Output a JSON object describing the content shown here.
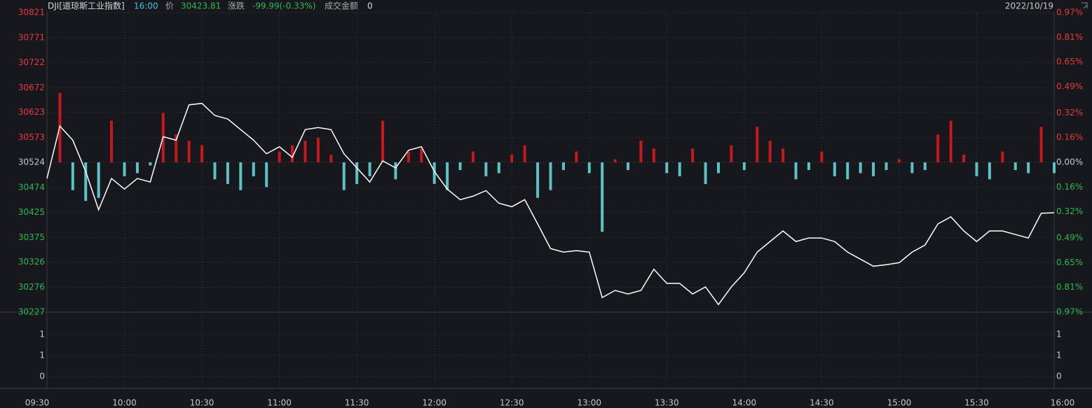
{
  "header": {
    "code": "DJI[道琼斯工业指数]",
    "time": "16:00",
    "price_label": "价",
    "price": "30423.81",
    "change_label": "涨跌",
    "change": "-99.99(-0.33%)",
    "amount_label": "成交金额",
    "amount": "0",
    "date": "2022/10/19"
  },
  "chart_data": {
    "type": "line",
    "x": [
      "09:30",
      "09:35",
      "09:40",
      "09:45",
      "09:50",
      "09:55",
      "10:00",
      "10:05",
      "10:10",
      "10:15",
      "10:20",
      "10:25",
      "10:30",
      "10:35",
      "10:40",
      "10:45",
      "10:50",
      "10:55",
      "11:00",
      "11:05",
      "11:10",
      "11:15",
      "11:20",
      "11:25",
      "11:30",
      "11:35",
      "11:40",
      "11:45",
      "11:50",
      "11:55",
      "12:00",
      "12:05",
      "12:10",
      "12:15",
      "12:20",
      "12:25",
      "12:30",
      "12:35",
      "12:40",
      "12:45",
      "12:50",
      "12:55",
      "13:00",
      "13:05",
      "13:10",
      "13:15",
      "13:20",
      "13:25",
      "13:30",
      "13:35",
      "13:40",
      "13:45",
      "13:50",
      "13:55",
      "14:00",
      "14:05",
      "14:10",
      "14:15",
      "14:20",
      "14:25",
      "14:30",
      "14:35",
      "14:40",
      "14:45",
      "14:50",
      "14:55",
      "15:00",
      "15:05",
      "15:10",
      "15:15",
      "15:20",
      "15:25",
      "15:30",
      "15:35",
      "15:40",
      "15:45",
      "15:50",
      "15:55",
      "16:00"
    ],
    "xlim": [
      "09:30",
      "16:00"
    ],
    "xticks": [
      "09:30",
      "10:00",
      "10:30",
      "11:00",
      "11:30",
      "12:00",
      "12:30",
      "13:00",
      "13:30",
      "14:00",
      "14:30",
      "15:00",
      "15:30",
      "16:00"
    ],
    "series": [
      {
        "type": "line",
        "color": "#ffffff",
        "values": [
          30492,
          30596,
          30568,
          30506,
          30430,
          30492,
          30471,
          30492,
          30485,
          30575,
          30568,
          30638,
          30641,
          30617,
          30610,
          30589,
          30568,
          30541,
          30555,
          30534,
          30589,
          30593,
          30589,
          30541,
          30513,
          30485,
          30527,
          30513,
          30548,
          30555,
          30506,
          30471,
          30450,
          30457,
          30468,
          30443,
          30436,
          30450,
          30402,
          30353,
          30346,
          30349,
          30346,
          30256,
          30270,
          30263,
          30270,
          30312,
          30284,
          30284,
          30263,
          30277,
          30242,
          30277,
          30305,
          30346,
          30367,
          30388,
          30367,
          30374,
          30374,
          30367,
          30346,
          30332,
          30318,
          30321,
          30325,
          30346,
          30360,
          30402,
          30416,
          30388,
          30367,
          30388,
          30388,
          30381,
          30374,
          30423,
          30424
        ]
      },
      {
        "type": "bar",
        "axis": "y2",
        "color": "#c8181c",
        "negative_color": "#5cc2c6",
        "values": [
          0,
          0.45,
          -0.18,
          -0.25,
          -0.23,
          0.27,
          -0.09,
          -0.07,
          -0.02,
          0.32,
          0.18,
          0.14,
          0.11,
          -0.11,
          -0.14,
          -0.18,
          -0.09,
          -0.16,
          0.07,
          0.11,
          0.14,
          0.16,
          0.05,
          -0.18,
          -0.14,
          -0.09,
          0.27,
          -0.11,
          0.07,
          0.09,
          -0.14,
          -0.18,
          -0.05,
          0.07,
          -0.09,
          -0.07,
          0.05,
          0.11,
          -0.23,
          -0.18,
          -0.05,
          0.07,
          -0.07,
          -0.45,
          0.02,
          -0.05,
          0.14,
          0.09,
          -0.07,
          -0.09,
          0.09,
          -0.14,
          -0.07,
          0.11,
          -0.05,
          0.23,
          0.14,
          0.09,
          -0.11,
          -0.05,
          0.07,
          -0.09,
          -0.11,
          -0.07,
          -0.09,
          -0.05,
          0.02,
          -0.07,
          -0.05,
          0.18,
          0.27,
          0.05,
          -0.09,
          -0.11,
          0.07,
          -0.05,
          -0.07,
          0.23,
          -0.07
        ]
      }
    ],
    "ylim": [
      30227,
      30821
    ],
    "yticks": [
      30821,
      30771,
      30722,
      30672,
      30623,
      30573,
      30524,
      30474,
      30425,
      30375,
      30326,
      30276,
      30227
    ],
    "y2lim": [
      -0.97,
      0.97
    ],
    "y2ticks": [
      {
        "value": 0.97,
        "label": "0.97%"
      },
      {
        "value": 0.81,
        "label": "0.81%"
      },
      {
        "value": 0.65,
        "label": "0.65%"
      },
      {
        "value": 0.49,
        "label": "0.49%"
      },
      {
        "value": 0.32,
        "label": "0.32%"
      },
      {
        "value": 0.16,
        "label": "0.16%"
      },
      {
        "value": 0,
        "label": "0.00%"
      },
      {
        "value": -0.16,
        "label": "0.16%"
      },
      {
        "value": -0.32,
        "label": "0.32%"
      },
      {
        "value": -0.49,
        "label": "0.49%"
      },
      {
        "value": -0.65,
        "label": "0.65%"
      },
      {
        "value": -0.81,
        "label": "0.81%"
      },
      {
        "value": -0.97,
        "label": "0.97%"
      }
    ],
    "volume_ylim": [
      0,
      1.5
    ],
    "volume_ticks": [
      {
        "value": 1,
        "label": "1"
      },
      {
        "value": 0.5,
        "label": "1"
      },
      0
    ],
    "up_color": "#e8393a",
    "down_color": "#2fb84f",
    "flat_color": "#c8c8c8",
    "grid": true
  }
}
